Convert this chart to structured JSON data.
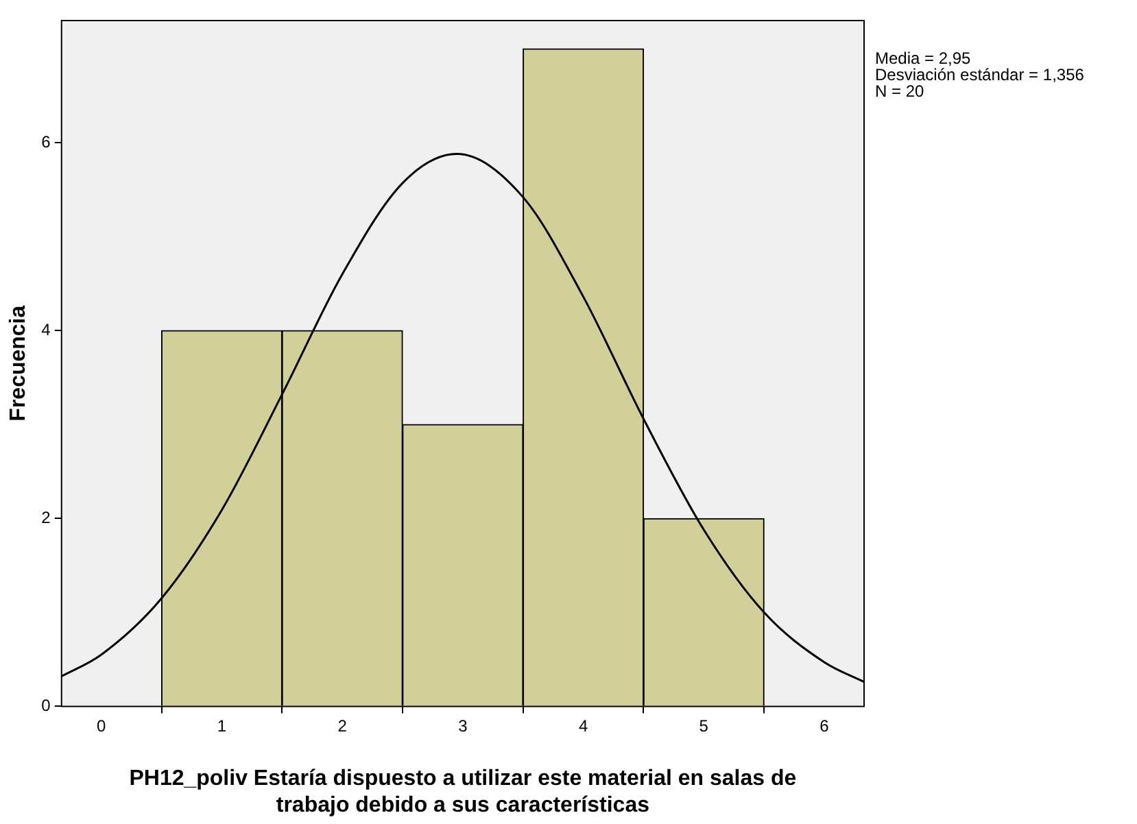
{
  "chart_data": {
    "type": "histogram",
    "xlabel": "PH12_poliv Estaría dispuesto a utilizar este material en salas de trabajo debido a sus características",
    "ylabel": "Frecuencia",
    "bins": [
      0.5,
      1.5,
      2.5,
      3.5,
      4.5,
      5.5
    ],
    "values": [
      4,
      4,
      3,
      7,
      2
    ],
    "color": "#d3cf9a",
    "series": [
      {
        "type": "line",
        "color": "#000000",
        "x": [
          -0.33,
          0,
          0.5,
          1,
          1.5,
          2,
          2.5,
          2.95,
          3.5,
          4,
          4.5,
          5,
          5.5,
          6,
          6.33
        ],
        "values": [
          0.32,
          0.55,
          1.15,
          2.09,
          3.32,
          4.6,
          5.57,
          5.88,
          5.42,
          4.36,
          3.06,
          1.88,
          1,
          0.47,
          0.26
        ]
      }
    ],
    "xlim": [
      -0.33,
      6.33
    ],
    "xticks": [
      0,
      1,
      2,
      3,
      4,
      5,
      6
    ],
    "ylim": [
      0,
      7.3
    ],
    "yticks": [
      0,
      2,
      4,
      6
    ],
    "annotations": [
      "Media = 2,95",
      "Desviación estándar = 1,356",
      "N = 20"
    ],
    "grid": false,
    "legend": false,
    "marker": "none"
  }
}
